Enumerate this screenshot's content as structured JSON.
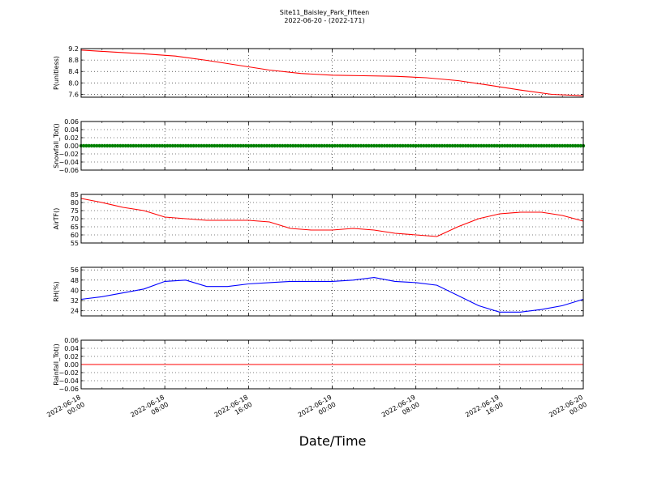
{
  "title_line1": "Site11_Baisley_Park_Fifteen",
  "title_line2": "2022-06-20 - (2022-171)",
  "xlabel": "Date/Time",
  "x_ticks": [
    {
      "line1": "2022-06-18",
      "line2": "00:00",
      "hours": 0
    },
    {
      "line1": "2022-06-18",
      "line2": "08:00",
      "hours": 8
    },
    {
      "line1": "2022-06-18",
      "line2": "16:00",
      "hours": 16
    },
    {
      "line1": "2022-06-19",
      "line2": "00:00",
      "hours": 24
    },
    {
      "line1": "2022-06-19",
      "line2": "08:00",
      "hours": 32
    },
    {
      "line1": "2022-06-19",
      "line2": "16:00",
      "hours": 40
    },
    {
      "line1": "2022-06-20",
      "line2": "00:00",
      "hours": 48
    }
  ],
  "chart_data": [
    {
      "type": "line",
      "ylabel": "P(unitless)",
      "color": "#ff0000",
      "ylim": [
        7.5,
        9.2
      ],
      "yticks": [
        "9.2",
        "8.8",
        "8.4",
        "8.0",
        "7.6"
      ],
      "grid": true,
      "x": [
        0,
        3,
        6,
        9,
        12,
        15,
        18,
        21,
        24,
        27,
        30,
        33,
        36,
        39,
        42,
        45,
        48
      ],
      "y": [
        9.15,
        9.08,
        9.02,
        8.94,
        8.79,
        8.62,
        8.45,
        8.33,
        8.27,
        8.25,
        8.23,
        8.18,
        8.08,
        7.92,
        7.75,
        7.6,
        7.55
      ]
    },
    {
      "type": "scatter",
      "ylabel": "Snowfall_Tot()",
      "color": "#008000",
      "ylim": [
        -0.06,
        0.06
      ],
      "yticks": [
        "0.06",
        "0.04",
        "0.02",
        "0.00",
        "−0.02",
        "−0.04",
        "−0.06"
      ],
      "grid": true,
      "x_range": [
        0,
        48
      ],
      "constant_value": 0.0
    },
    {
      "type": "line",
      "ylabel": "AirTF()",
      "color": "#ff0000",
      "ylim": [
        55,
        85
      ],
      "yticks": [
        "85",
        "80",
        "75",
        "70",
        "65",
        "60",
        "55"
      ],
      "grid": true,
      "x": [
        0,
        2,
        4,
        6,
        8,
        10,
        12,
        14,
        16,
        18,
        20,
        22,
        24,
        26,
        28,
        30,
        32,
        34,
        36,
        38,
        40,
        42,
        44,
        46,
        48
      ],
      "y": [
        82.5,
        80,
        77,
        75,
        71,
        70,
        69,
        69,
        69,
        68,
        64,
        63,
        63,
        64,
        63,
        61,
        60,
        59,
        65,
        70,
        73,
        74,
        74,
        72,
        68.5
      ]
    },
    {
      "type": "line",
      "ylabel": "RH(%)",
      "color": "#0000ff",
      "ylim": [
        20,
        58
      ],
      "yticks": [
        "56",
        "48",
        "40",
        "32",
        "24"
      ],
      "grid": true,
      "x": [
        0,
        2,
        4,
        6,
        8,
        10,
        12,
        14,
        16,
        18,
        20,
        22,
        24,
        26,
        28,
        30,
        32,
        34,
        36,
        38,
        40,
        42,
        44,
        46,
        48
      ],
      "y": [
        33,
        35,
        38,
        41,
        47,
        48,
        43,
        43,
        45,
        46,
        47,
        47,
        47,
        48,
        50,
        47,
        46,
        44,
        36,
        28,
        23,
        23,
        25,
        28,
        33
      ]
    },
    {
      "type": "line",
      "ylabel": "Rainfall_Tot()",
      "color": "#ff0000",
      "ylim": [
        -0.06,
        0.06
      ],
      "yticks": [
        "0.06",
        "0.04",
        "0.02",
        "0.00",
        "−0.02",
        "−0.04",
        "−0.06"
      ],
      "grid": true,
      "x": [
        0,
        48
      ],
      "y": [
        0.0,
        0.0
      ]
    }
  ]
}
